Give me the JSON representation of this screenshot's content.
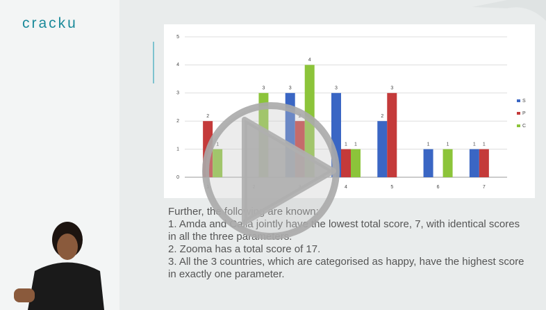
{
  "logo": "cracku",
  "chart_data": {
    "type": "bar",
    "categories": [
      "1",
      "2",
      "3",
      "4",
      "5",
      "6",
      "7"
    ],
    "series": [
      {
        "name": "S",
        "color": "#3a66c4",
        "values": [
          null,
          null,
          3,
          3,
          2,
          1,
          1
        ]
      },
      {
        "name": "P",
        "color": "#c43a3a",
        "values": [
          2,
          null,
          2,
          1,
          3,
          null,
          1
        ]
      },
      {
        "name": "C",
        "color": "#8cc43a",
        "values": [
          1,
          3,
          4,
          1,
          null,
          1,
          null
        ]
      }
    ],
    "ylim": [
      0,
      5
    ],
    "yticks": [
      0,
      1,
      2,
      3,
      4,
      5
    ],
    "grid": true,
    "legend": "right"
  },
  "text": {
    "intro": "Further, the following are known:",
    "lines": [
      "1. Amda and Calla jointly have the lowest total score, 7, with identical scores in all the three parameters.",
      "2. Zooma has a total score of 17.",
      "3. All the 3 countries, which are categorised as happy, have the highest score in exactly one parameter."
    ]
  }
}
